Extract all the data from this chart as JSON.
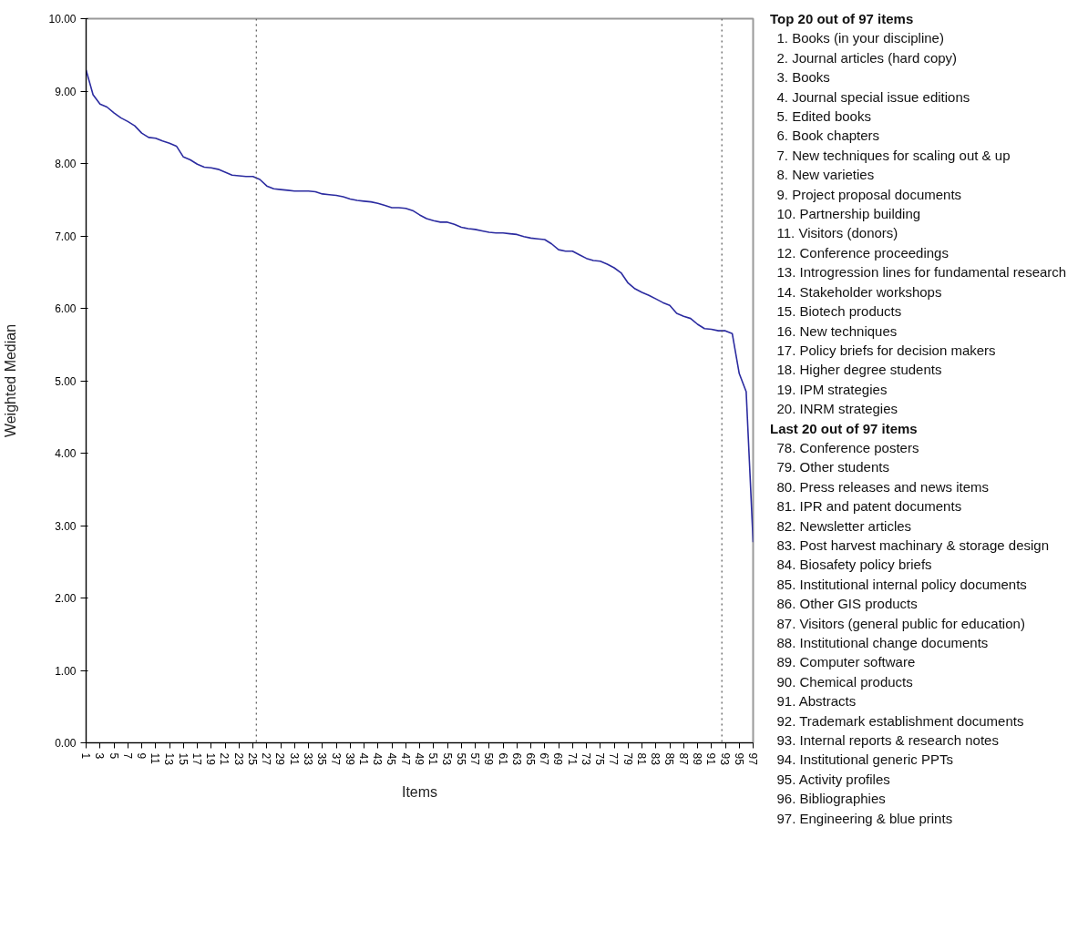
{
  "chart_data": {
    "type": "line",
    "xlabel": "Items",
    "ylabel": "Weighted Median",
    "x": [
      1,
      2,
      3,
      4,
      5,
      6,
      7,
      8,
      9,
      10,
      11,
      12,
      13,
      14,
      15,
      16,
      17,
      18,
      19,
      20,
      21,
      22,
      23,
      24,
      25,
      26,
      27,
      28,
      29,
      30,
      31,
      32,
      33,
      34,
      35,
      36,
      37,
      38,
      39,
      40,
      41,
      42,
      43,
      44,
      45,
      46,
      47,
      48,
      49,
      50,
      51,
      52,
      53,
      54,
      55,
      56,
      57,
      58,
      59,
      60,
      61,
      62,
      63,
      64,
      65,
      66,
      67,
      68,
      69,
      70,
      71,
      72,
      73,
      74,
      75,
      76,
      77,
      78,
      79,
      80,
      81,
      82,
      83,
      84,
      85,
      86,
      87,
      88,
      89,
      90,
      91,
      92,
      93,
      94,
      95,
      96,
      97
    ],
    "values": [
      9.29,
      8.95,
      8.82,
      8.78,
      8.7,
      8.63,
      8.58,
      8.52,
      8.42,
      8.36,
      8.35,
      8.31,
      8.28,
      8.24,
      8.09,
      8.05,
      7.99,
      7.95,
      7.94,
      7.92,
      7.88,
      7.84,
      7.83,
      7.82,
      7.82,
      7.78,
      7.69,
      7.65,
      7.64,
      7.63,
      7.62,
      7.62,
      7.62,
      7.61,
      7.58,
      7.57,
      7.56,
      7.54,
      7.51,
      7.49,
      7.48,
      7.47,
      7.45,
      7.42,
      7.39,
      7.39,
      7.38,
      7.35,
      7.29,
      7.24,
      7.21,
      7.19,
      7.19,
      7.16,
      7.12,
      7.1,
      7.09,
      7.07,
      7.05,
      7.04,
      7.04,
      7.03,
      7.02,
      6.99,
      6.97,
      6.96,
      6.95,
      6.89,
      6.81,
      6.79,
      6.79,
      6.74,
      6.69,
      6.66,
      6.65,
      6.61,
      6.56,
      6.49,
      6.35,
      6.27,
      6.22,
      6.18,
      6.13,
      6.08,
      6.04,
      5.93,
      5.89,
      5.86,
      5.78,
      5.72,
      5.71,
      5.69,
      5.69,
      5.65,
      5.1,
      4.85,
      2.77
    ],
    "color": "#2b2ba0",
    "line_style": "solid",
    "marker": "none",
    "xlim": [
      1,
      97
    ],
    "xticks": [
      1,
      3,
      5,
      7,
      9,
      11,
      13,
      15,
      17,
      19,
      21,
      23,
      25,
      27,
      29,
      31,
      33,
      35,
      37,
      39,
      41,
      43,
      45,
      47,
      49,
      51,
      53,
      55,
      57,
      59,
      61,
      63,
      65,
      67,
      69,
      71,
      73,
      75,
      77,
      79,
      81,
      83,
      85,
      87,
      89,
      91,
      93,
      95,
      97
    ],
    "ylim": [
      0,
      10
    ],
    "yticks": [
      {
        "value": 0,
        "label": "0.00"
      },
      {
        "value": 1,
        "label": "1.00"
      },
      {
        "value": 2,
        "label": "2.00"
      },
      {
        "value": 3,
        "label": "3.00"
      },
      {
        "value": 4,
        "label": "4.00"
      },
      {
        "value": 5,
        "label": "5.00"
      },
      {
        "value": 6,
        "label": "6.00"
      },
      {
        "value": 7,
        "label": "7.00"
      },
      {
        "value": 8,
        "label": "8.00"
      },
      {
        "value": 9,
        "label": "9.00"
      },
      {
        "value": 10,
        "label": "10.00"
      }
    ],
    "ref_lines": [
      {
        "axis": "x",
        "value": 25.5,
        "color": "#555555",
        "line_style": "dotted"
      },
      {
        "axis": "x",
        "value": 92.5,
        "color": "#555555",
        "line_style": "dotted"
      }
    ],
    "annotations": [
      "Top 20 out of 97 items",
      "1.  Books (in your discipline)",
      "2.  Journal articles (hard copy)",
      "3.  Books",
      "4.  Journal special issue editions",
      "5.  Edited books",
      "6.  Book chapters",
      "7.  New techniques for scaling out & up",
      "8.  New varieties",
      "9.  Project proposal documents",
      "10.  Partnership building",
      "11.  Visitors (donors)",
      "12.  Conference proceedings",
      "13.  Introgression lines for fundamental research",
      "14.  Stakeholder workshops",
      "15.  Biotech products",
      "16.  New techniques",
      "17.  Policy briefs for decision makers",
      "18.  Higher degree students",
      "19.  IPM strategies",
      "20.  INRM strategies",
      "Last 20  out of 97 items",
      "78.  Conference posters",
      "79.  Other students",
      "80.  Press releases and news items",
      "81.  IPR and patent documents",
      "82.  Newsletter articles",
      "83.  Post harvest machinary & storage design",
      "84.  Biosafety policy briefs",
      "85.  Institutional internal policy documents",
      "86.  Other GIS products",
      "87.  Visitors (general public for education)",
      "88.  Institutional change documents",
      "89.  Computer software",
      "90.  Chemical products",
      "91.  Abstracts",
      "92.  Trademark establishment documents",
      "93.  Internal reports & research notes",
      "94.  Institutional generic PPTs",
      "95.  Activity profiles",
      "96.  Bibliographies",
      "97.  Engineering & blue prints"
    ]
  }
}
